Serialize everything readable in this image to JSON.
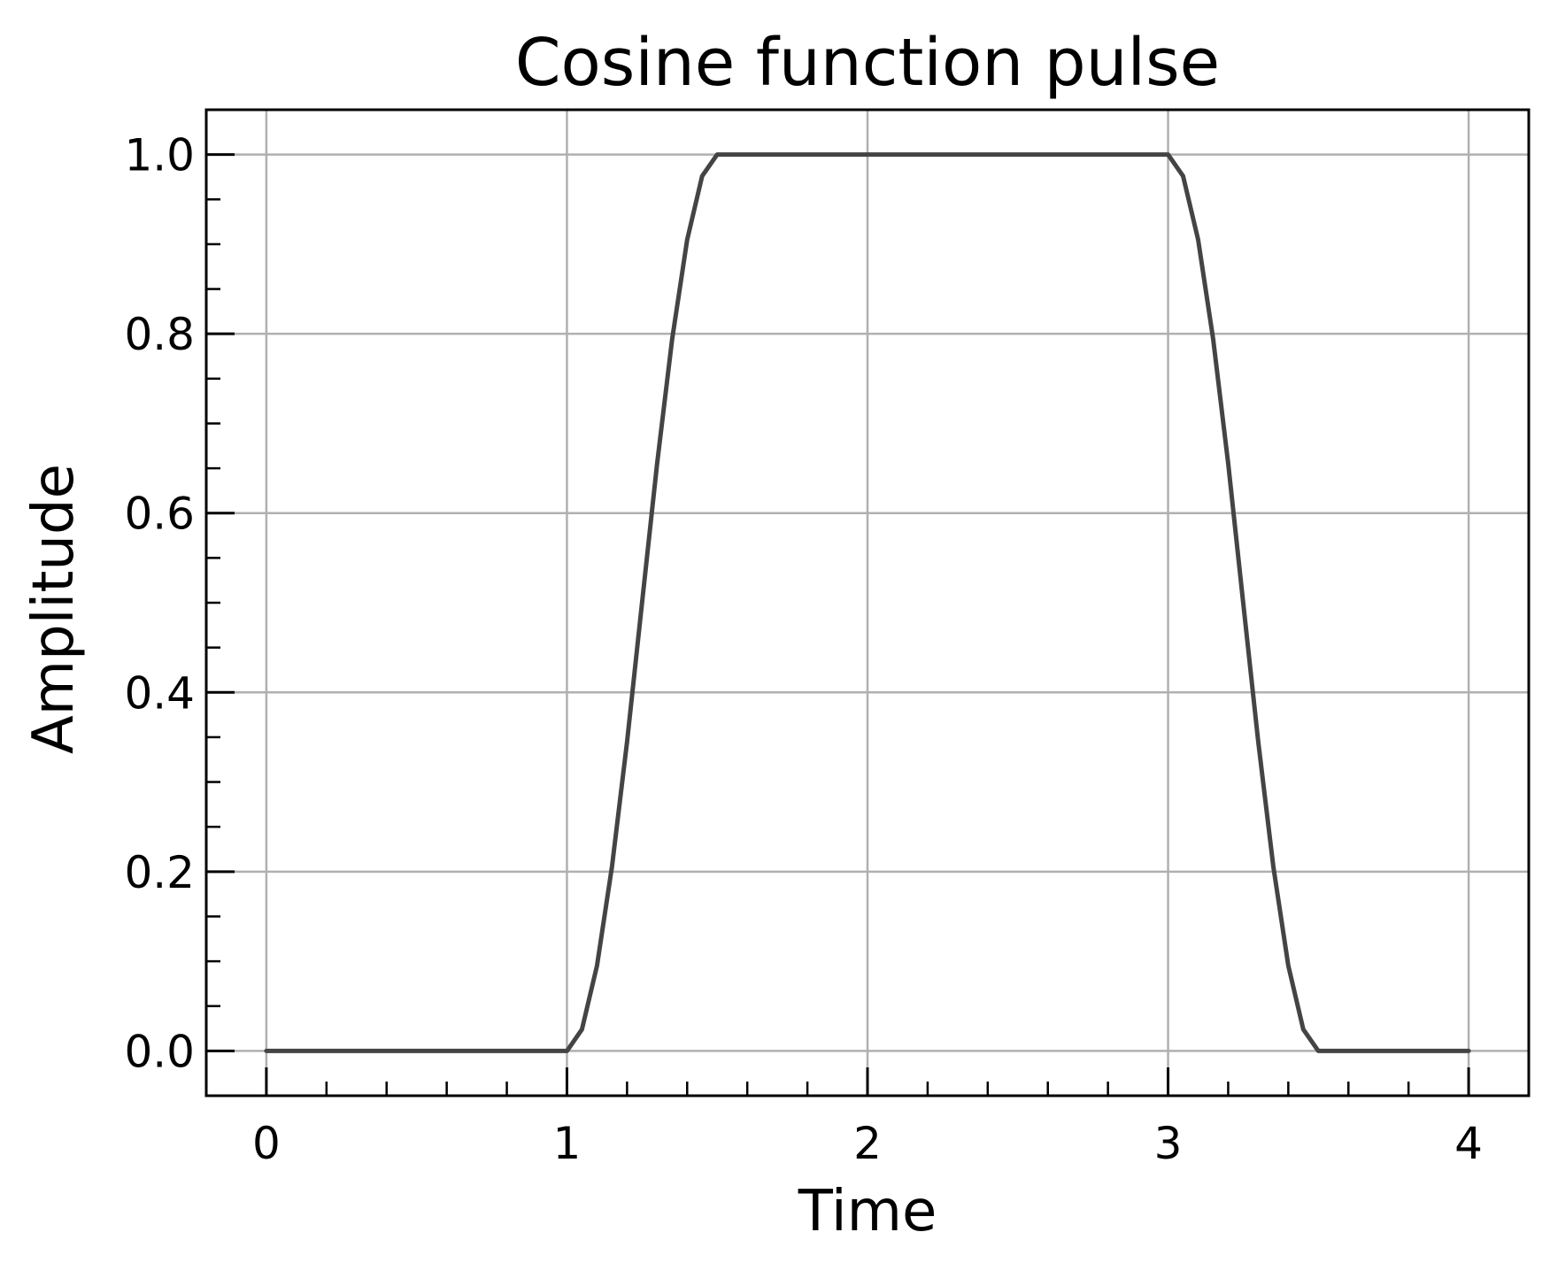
{
  "chart_data": {
    "type": "line",
    "title": "Cosine function pulse",
    "xlabel": "Time",
    "ylabel": "Amplitude",
    "xlim": [
      -0.2,
      4.2
    ],
    "ylim": [
      -0.05,
      1.05
    ],
    "grid": true,
    "x_ticks": [
      0,
      1,
      2,
      3,
      4
    ],
    "x_tick_labels": [
      "0",
      "1",
      "2",
      "3",
      "4"
    ],
    "x_minor_step": 0.2,
    "y_ticks": [
      0.0,
      0.2,
      0.4,
      0.6,
      0.8,
      1.0
    ],
    "y_tick_labels": [
      "0.0",
      "0.2",
      "0.4",
      "0.6",
      "0.8",
      "1.0"
    ],
    "y_minor_step": 0.05,
    "colors": {
      "line": "#444444",
      "grid": "#b0b0b0",
      "axes": "#000000"
    },
    "series": [
      {
        "x": [
          0.0,
          0.5,
          1.0,
          1.05,
          1.1,
          1.15,
          1.2,
          1.25,
          1.3,
          1.35,
          1.4,
          1.45,
          1.5,
          2.0,
          2.5,
          3.0,
          3.05,
          3.1,
          3.15,
          3.2,
          3.25,
          3.3,
          3.35,
          3.4,
          3.45,
          3.5,
          4.0
        ],
        "y": [
          0.0,
          0.0,
          0.0,
          0.024,
          0.095,
          0.206,
          0.345,
          0.5,
          0.655,
          0.794,
          0.905,
          0.976,
          1.0,
          1.0,
          1.0,
          1.0,
          0.976,
          0.905,
          0.794,
          0.655,
          0.5,
          0.345,
          0.206,
          0.095,
          0.024,
          0.0,
          0.0
        ]
      }
    ]
  }
}
